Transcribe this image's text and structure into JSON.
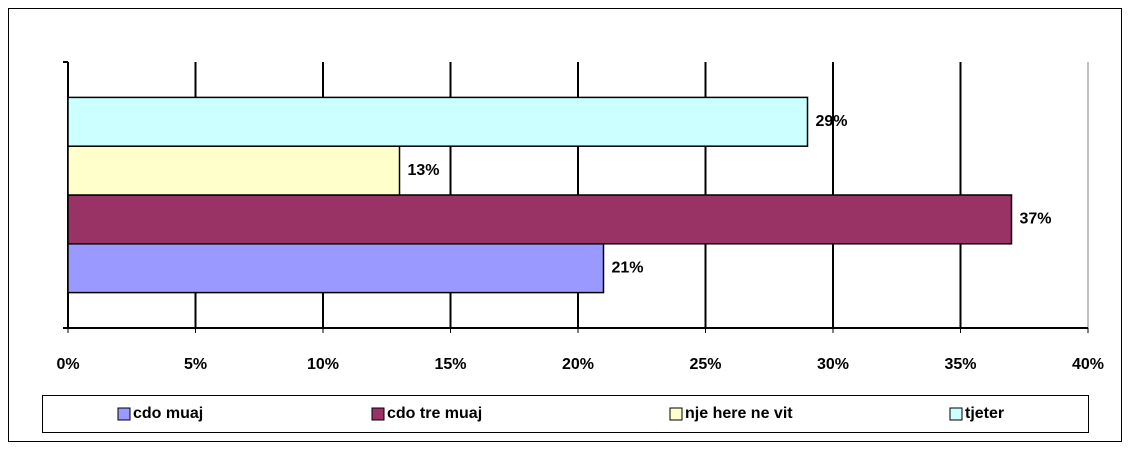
{
  "chart_data": {
    "type": "bar",
    "orientation": "horizontal",
    "categories": [
      null
    ],
    "series": [
      {
        "name": "cdo muaj",
        "color": "#9999ff",
        "values": [
          21
        ],
        "value_labels": [
          "21%"
        ]
      },
      {
        "name": "cdo tre muaj",
        "color": "#993366",
        "values": [
          37
        ],
        "value_labels": [
          "37%"
        ]
      },
      {
        "name": "nje here ne vit",
        "color": "#ffffcc",
        "values": [
          13
        ],
        "value_labels": [
          "13%"
        ]
      },
      {
        "name": "tjeter",
        "color": "#ccffff",
        "values": [
          29
        ],
        "value_labels": [
          "29%"
        ]
      }
    ],
    "xlim": [
      0,
      40
    ],
    "xticks": [
      {
        "value": 0,
        "label": "0%"
      },
      {
        "value": 5,
        "label": "5%"
      },
      {
        "value": 10,
        "label": "10%"
      },
      {
        "value": 15,
        "label": "15%"
      },
      {
        "value": 20,
        "label": "20%"
      },
      {
        "value": 25,
        "label": "25%"
      },
      {
        "value": 30,
        "label": "30%"
      },
      {
        "value": 35,
        "label": "35%"
      },
      {
        "value": 40,
        "label": "40%"
      }
    ],
    "grid": true,
    "legend": "bottom"
  }
}
